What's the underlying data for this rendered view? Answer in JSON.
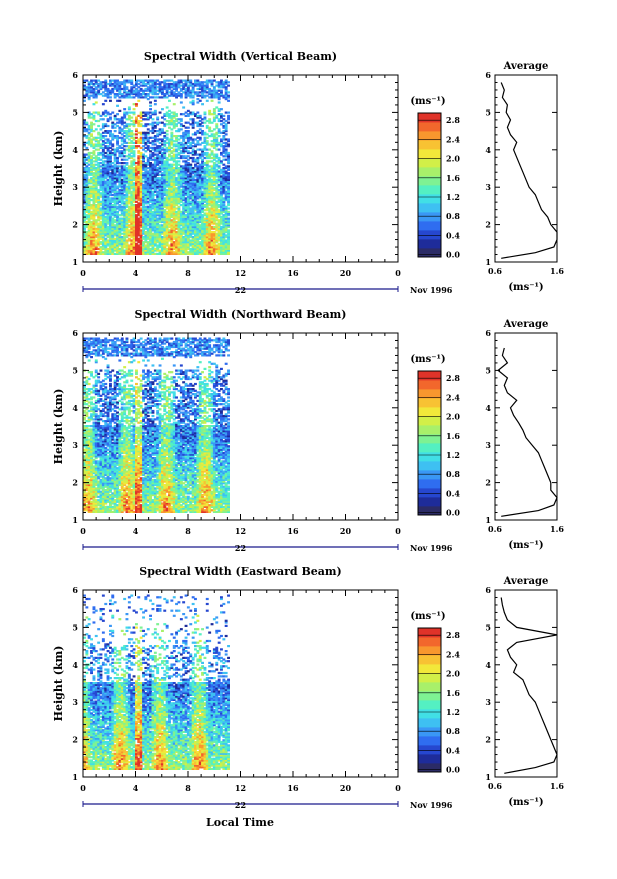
{
  "figure": {
    "xlabel": "Local Time",
    "x_ticks": [
      "0",
      "4",
      "8",
      "12",
      "16",
      "20",
      "0"
    ],
    "day_label": "22",
    "date_label": "Nov 1996",
    "y_ticks": [
      "1",
      "2",
      "3",
      "4",
      "5",
      "6"
    ],
    "ylabel": "Height (km)",
    "colorbar_unit": "(ms⁻¹)",
    "colorbar_ticks": [
      "0.0",
      "0.4",
      "0.8",
      "1.2",
      "1.6",
      "2.0",
      "2.4",
      "2.8"
    ],
    "avg_title": "Average",
    "avg_xlabel": "(ms⁻¹)",
    "avg_x_ticks": [
      "0.6",
      "1.6"
    ],
    "colors": [
      "#2b2b66",
      "#1e2c9a",
      "#2647cf",
      "#2f6df0",
      "#3a97f5",
      "#3ec0f2",
      "#41dfe6",
      "#54f0c2",
      "#7ef293",
      "#a8f06a",
      "#d2ef48",
      "#f2e83a",
      "#f8c233",
      "#f8972e",
      "#f2672c",
      "#e03329"
    ]
  },
  "chart_data": [
    {
      "type": "heatmap",
      "title": "Spectral Width (Vertical Beam)",
      "xlim": [
        0,
        24
      ],
      "ylim": [
        1,
        6
      ],
      "data_extent_hours": [
        0,
        11.0
      ],
      "value_range": [
        0.0,
        3.0
      ],
      "average_profile": {
        "height_km": [
          1.1,
          1.25,
          1.4,
          1.6,
          1.8,
          2.0,
          2.2,
          2.4,
          2.6,
          2.8,
          3.0,
          3.2,
          3.4,
          3.6,
          3.8,
          4.0,
          4.2,
          4.4,
          4.6,
          4.8,
          5.0,
          5.2,
          5.4,
          5.6,
          5.8
        ],
        "width_ms": [
          0.7,
          1.25,
          1.55,
          1.65,
          1.6,
          1.5,
          1.45,
          1.35,
          1.3,
          1.25,
          1.15,
          1.1,
          1.05,
          1.0,
          0.95,
          0.9,
          0.95,
          0.85,
          0.8,
          0.85,
          0.78,
          0.8,
          0.72,
          0.75,
          0.7
        ]
      }
    },
    {
      "type": "heatmap",
      "title": "Spectral Width (Northward Beam)",
      "xlim": [
        0,
        24
      ],
      "ylim": [
        1,
        6
      ],
      "data_extent_hours": [
        0,
        11.0
      ],
      "value_range": [
        0.0,
        3.0
      ],
      "average_profile": {
        "height_km": [
          1.1,
          1.25,
          1.4,
          1.6,
          1.8,
          2.0,
          2.2,
          2.4,
          2.6,
          2.8,
          3.0,
          3.2,
          3.4,
          3.6,
          3.8,
          4.0,
          4.2,
          4.4,
          4.6,
          4.8,
          5.0,
          5.2,
          5.4,
          5.6
        ],
        "width_ms": [
          0.7,
          1.3,
          1.55,
          1.6,
          1.5,
          1.5,
          1.45,
          1.4,
          1.35,
          1.3,
          1.2,
          1.1,
          1.05,
          0.98,
          0.9,
          0.85,
          0.95,
          0.8,
          0.75,
          0.8,
          0.65,
          0.8,
          0.72,
          0.75
        ]
      }
    },
    {
      "type": "heatmap",
      "title": "Spectral Width (Eastward Beam)",
      "xlim": [
        0,
        24
      ],
      "ylim": [
        1,
        6
      ],
      "data_extent_hours": [
        0,
        11.0
      ],
      "value_range": [
        0.0,
        3.0
      ],
      "average_profile": {
        "height_km": [
          1.1,
          1.25,
          1.4,
          1.6,
          1.8,
          2.0,
          2.2,
          2.4,
          2.6,
          2.8,
          3.0,
          3.2,
          3.4,
          3.6,
          3.8,
          4.0,
          4.2,
          4.4,
          4.6,
          4.8,
          5.0,
          5.2,
          5.4,
          5.6,
          5.8
        ],
        "width_ms": [
          0.75,
          1.25,
          1.55,
          1.6,
          1.55,
          1.5,
          1.45,
          1.4,
          1.35,
          1.3,
          1.25,
          1.15,
          1.1,
          1.05,
          0.9,
          0.95,
          0.85,
          0.8,
          0.95,
          1.6,
          0.95,
          0.8,
          0.75,
          0.72,
          0.7
        ]
      }
    }
  ]
}
